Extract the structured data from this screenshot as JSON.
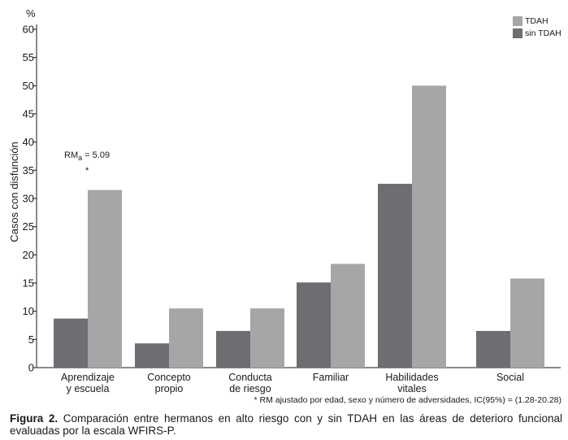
{
  "chart_data": {
    "type": "bar",
    "y_unit_label": "%",
    "ylabel": "Casos con disfunción",
    "ylim": [
      0,
      60
    ],
    "yticks": [
      0,
      5,
      10,
      15,
      20,
      25,
      30,
      35,
      40,
      45,
      50,
      55,
      60
    ],
    "categories": [
      [
        "Aprendizaje",
        "y escuela"
      ],
      [
        "Concepto",
        "propio"
      ],
      [
        "Conducta",
        "de riesgo"
      ],
      [
        "Familiar"
      ],
      [
        "Habilidades",
        "vitales"
      ],
      [
        "Social"
      ]
    ],
    "series": [
      {
        "name": "sin TDAH",
        "color": "#6d6d72",
        "values": [
          8.7,
          4.3,
          6.5,
          15.1,
          32.6,
          6.5
        ]
      },
      {
        "name": "TDAH",
        "color": "#a6a6a8",
        "values": [
          31.5,
          10.5,
          10.5,
          18.4,
          50.0,
          15.8
        ]
      }
    ],
    "legend_order": [
      "TDAH",
      "sin TDAH"
    ],
    "legend_position": "top-right",
    "annotation": {
      "category_index": 0,
      "rm_text": "RM",
      "rm_subscript": "a",
      "rm_value": " = 5.09",
      "marker": "*"
    },
    "footnote": "* RM ajustado por edad, sexo y número de adversidades, IC(95%) = (1.28-20.28)"
  },
  "caption": {
    "label": "Figura 2.",
    "text": " Comparación entre hermanos en alto riesgo con y sin TDAH en las áreas de deterioro funcional evaluadas por la escala WFIRS-P."
  }
}
